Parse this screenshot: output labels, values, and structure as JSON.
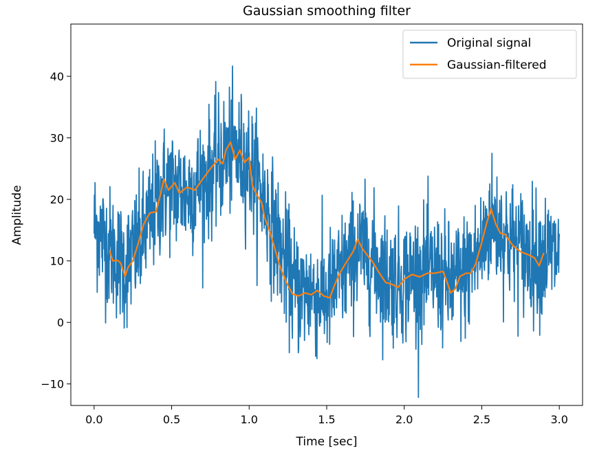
{
  "chart_data": {
    "type": "line",
    "title": "Gaussian smoothing filter",
    "xlabel": "Time [sec]",
    "ylabel": "Amplitude",
    "xlim": [
      -0.15,
      3.15
    ],
    "ylim": [
      -13.5,
      48.5
    ],
    "xticks": [
      0.0,
      0.5,
      1.0,
      1.5,
      2.0,
      2.5,
      3.0
    ],
    "xtick_labels": [
      "0.0",
      "0.5",
      "1.0",
      "1.5",
      "2.0",
      "2.5",
      "3.0"
    ],
    "yticks": [
      -10,
      0,
      10,
      20,
      30,
      40
    ],
    "ytick_labels": [
      "−10",
      "0",
      "10",
      "20",
      "30",
      "40"
    ],
    "grid": false,
    "legend": "top-right",
    "series": [
      {
        "name": "Original signal",
        "color": "#1f77b4",
        "x_range": [
          0.0,
          3.0
        ],
        "sample_count": 1500,
        "noise_sd": 5,
        "envelope": [
          {
            "x": 0.0,
            "y": 16
          },
          {
            "x": 0.1,
            "y": 12
          },
          {
            "x": 0.2,
            "y": 9
          },
          {
            "x": 0.3,
            "y": 13
          },
          {
            "x": 0.4,
            "y": 19
          },
          {
            "x": 0.45,
            "y": 22
          },
          {
            "x": 0.5,
            "y": 22
          },
          {
            "x": 0.6,
            "y": 21
          },
          {
            "x": 0.7,
            "y": 23
          },
          {
            "x": 0.8,
            "y": 26
          },
          {
            "x": 0.88,
            "y": 28
          },
          {
            "x": 1.0,
            "y": 26
          },
          {
            "x": 1.1,
            "y": 20
          },
          {
            "x": 1.2,
            "y": 12
          },
          {
            "x": 1.3,
            "y": 5
          },
          {
            "x": 1.4,
            "y": 5
          },
          {
            "x": 1.5,
            "y": 4
          },
          {
            "x": 1.6,
            "y": 8
          },
          {
            "x": 1.7,
            "y": 12
          },
          {
            "x": 1.8,
            "y": 10
          },
          {
            "x": 1.9,
            "y": 7
          },
          {
            "x": 2.0,
            "y": 7
          },
          {
            "x": 2.1,
            "y": 8
          },
          {
            "x": 2.2,
            "y": 8
          },
          {
            "x": 2.3,
            "y": 6
          },
          {
            "x": 2.4,
            "y": 8
          },
          {
            "x": 2.5,
            "y": 12
          },
          {
            "x": 2.56,
            "y": 17
          },
          {
            "x": 2.65,
            "y": 14
          },
          {
            "x": 2.8,
            "y": 11
          },
          {
            "x": 3.0,
            "y": 11
          }
        ]
      },
      {
        "name": "Gaussian-filtered",
        "color": "#ff7f0e",
        "points": [
          {
            "x": 0.1,
            "y": 11.7
          },
          {
            "x": 0.12,
            "y": 10.0
          },
          {
            "x": 0.15,
            "y": 10.1
          },
          {
            "x": 0.17,
            "y": 9.7
          },
          {
            "x": 0.2,
            "y": 7.5
          },
          {
            "x": 0.22,
            "y": 9.0
          },
          {
            "x": 0.25,
            "y": 10.0
          },
          {
            "x": 0.28,
            "y": 12.5
          },
          {
            "x": 0.32,
            "y": 16.0
          },
          {
            "x": 0.36,
            "y": 17.8
          },
          {
            "x": 0.4,
            "y": 18.0
          },
          {
            "x": 0.43,
            "y": 21.0
          },
          {
            "x": 0.45,
            "y": 23.3
          },
          {
            "x": 0.48,
            "y": 21.5
          },
          {
            "x": 0.52,
            "y": 22.7
          },
          {
            "x": 0.55,
            "y": 21.0
          },
          {
            "x": 0.6,
            "y": 22.0
          },
          {
            "x": 0.65,
            "y": 21.5
          },
          {
            "x": 0.7,
            "y": 23.3
          },
          {
            "x": 0.75,
            "y": 25.0
          },
          {
            "x": 0.8,
            "y": 26.5
          },
          {
            "x": 0.83,
            "y": 25.8
          },
          {
            "x": 0.85,
            "y": 28.0
          },
          {
            "x": 0.88,
            "y": 29.3
          },
          {
            "x": 0.91,
            "y": 26.5
          },
          {
            "x": 0.94,
            "y": 28.0
          },
          {
            "x": 0.97,
            "y": 26.0
          },
          {
            "x": 1.0,
            "y": 26.8
          },
          {
            "x": 1.02,
            "y": 22.3
          },
          {
            "x": 1.05,
            "y": 20.7
          },
          {
            "x": 1.08,
            "y": 19.5
          },
          {
            "x": 1.1,
            "y": 17.0
          },
          {
            "x": 1.13,
            "y": 15.0
          },
          {
            "x": 1.16,
            "y": 12.5
          },
          {
            "x": 1.2,
            "y": 9.0
          },
          {
            "x": 1.24,
            "y": 6.5
          },
          {
            "x": 1.28,
            "y": 4.6
          },
          {
            "x": 1.32,
            "y": 4.3
          },
          {
            "x": 1.36,
            "y": 4.8
          },
          {
            "x": 1.4,
            "y": 4.5
          },
          {
            "x": 1.44,
            "y": 5.2
          },
          {
            "x": 1.48,
            "y": 4.3
          },
          {
            "x": 1.52,
            "y": 4.0
          },
          {
            "x": 1.55,
            "y": 6.0
          },
          {
            "x": 1.58,
            "y": 7.8
          },
          {
            "x": 1.62,
            "y": 9.5
          },
          {
            "x": 1.67,
            "y": 11.5
          },
          {
            "x": 1.7,
            "y": 13.5
          },
          {
            "x": 1.73,
            "y": 12.0
          },
          {
            "x": 1.76,
            "y": 11.0
          },
          {
            "x": 1.8,
            "y": 9.7
          },
          {
            "x": 1.84,
            "y": 8.0
          },
          {
            "x": 1.88,
            "y": 6.5
          },
          {
            "x": 1.92,
            "y": 6.2
          },
          {
            "x": 1.96,
            "y": 5.7
          },
          {
            "x": 2.0,
            "y": 7.0
          },
          {
            "x": 2.05,
            "y": 7.8
          },
          {
            "x": 2.1,
            "y": 7.4
          },
          {
            "x": 2.15,
            "y": 8.0
          },
          {
            "x": 2.2,
            "y": 8.0
          },
          {
            "x": 2.25,
            "y": 8.3
          },
          {
            "x": 2.27,
            "y": 7.0
          },
          {
            "x": 2.3,
            "y": 4.8
          },
          {
            "x": 2.33,
            "y": 5.5
          },
          {
            "x": 2.36,
            "y": 7.5
          },
          {
            "x": 2.4,
            "y": 8.0
          },
          {
            "x": 2.43,
            "y": 8.0
          },
          {
            "x": 2.46,
            "y": 9.5
          },
          {
            "x": 2.5,
            "y": 13.0
          },
          {
            "x": 2.53,
            "y": 16.0
          },
          {
            "x": 2.56,
            "y": 18.5
          },
          {
            "x": 2.59,
            "y": 16.0
          },
          {
            "x": 2.62,
            "y": 14.5
          },
          {
            "x": 2.65,
            "y": 14.3
          },
          {
            "x": 2.7,
            "y": 12.5
          },
          {
            "x": 2.75,
            "y": 11.5
          },
          {
            "x": 2.8,
            "y": 11.0
          },
          {
            "x": 2.84,
            "y": 10.5
          },
          {
            "x": 2.87,
            "y": 9.2
          },
          {
            "x": 2.9,
            "y": 11.3
          }
        ]
      }
    ]
  }
}
